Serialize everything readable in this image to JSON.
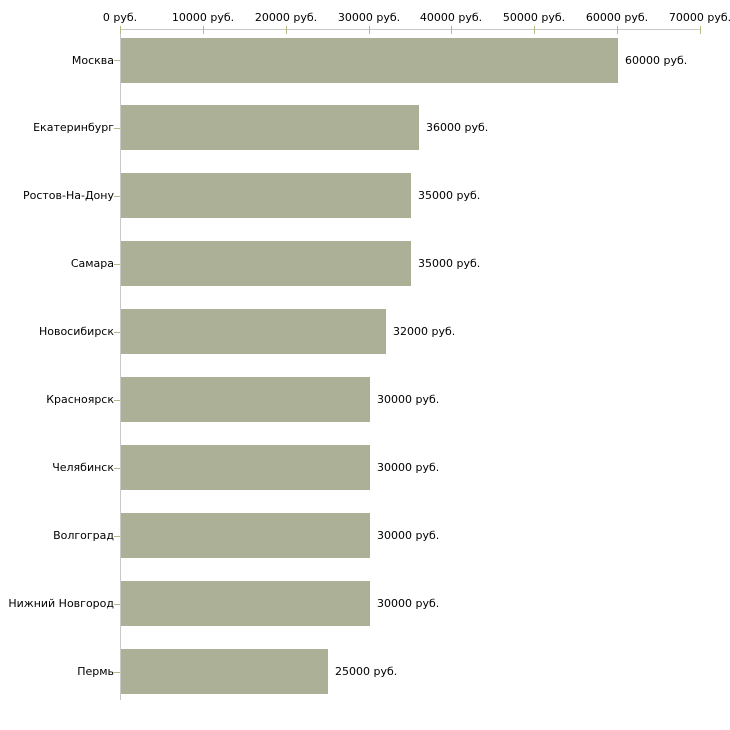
{
  "chart_data": {
    "type": "bar",
    "orientation": "horizontal",
    "title": "",
    "xlabel": "",
    "ylabel": "",
    "unit": "руб.",
    "xlim": [
      0,
      70000
    ],
    "grid": false,
    "legend": null,
    "x_tick_values": [
      0,
      10000,
      20000,
      30000,
      40000,
      50000,
      60000,
      70000
    ],
    "x_tick_labels": [
      "0 руб.",
      "10000 руб.",
      "20000 руб.",
      "30000 руб.",
      "40000 руб.",
      "50000 руб.",
      "60000 руб.",
      "70000 руб."
    ],
    "categories": [
      "Москва",
      "Екатеринбург",
      "Ростов-На-Дону",
      "Самара",
      "Новосибирск",
      "Красноярск",
      "Челябинск",
      "Волгоград",
      "Нижний Новгород",
      "Пермь"
    ],
    "values": [
      60000,
      36000,
      35000,
      35000,
      32000,
      30000,
      30000,
      30000,
      30000,
      25000
    ],
    "value_labels": [
      "60000 руб.",
      "36000 руб.",
      "35000 руб.",
      "35000 руб.",
      "32000 руб.",
      "30000 руб.",
      "30000 руб.",
      "30000 руб.",
      "30000 руб.",
      "25000 руб."
    ],
    "colors": {
      "bar": "#abb096",
      "tick": "#b8b786",
      "axis": "#c8c8c8",
      "text": "#000000",
      "background": "#ffffff"
    }
  }
}
